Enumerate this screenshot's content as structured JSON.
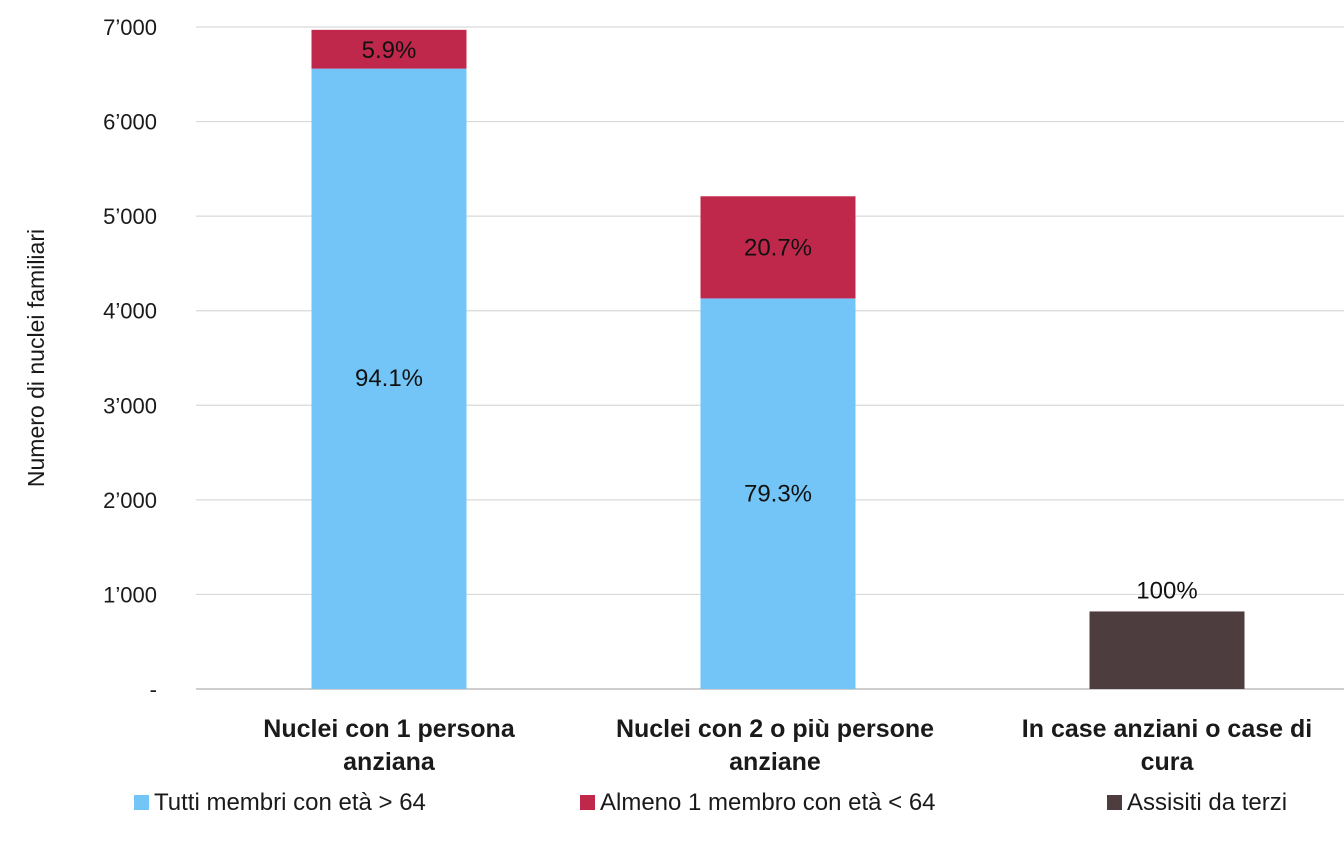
{
  "chart_data": {
    "type": "bar",
    "stacked": true,
    "title": "",
    "xlabel": "",
    "ylabel": "Numero di nuclei familiari",
    "ylim": [
      0,
      7000
    ],
    "yticks": [
      0,
      1000,
      2000,
      3000,
      4000,
      5000,
      6000,
      7000
    ],
    "ytick_labels": [
      "-",
      "1’000",
      "2’000",
      "3’000",
      "4’000",
      "5’000",
      "6’000",
      "7’000"
    ],
    "grid": true,
    "legend_position": "bottom",
    "categories": [
      [
        "Nuclei con 1 persona",
        "anziana"
      ],
      [
        "Nuclei con 2 o più persone",
        "anziane"
      ],
      [
        "In case anziani o case di",
        "cura"
      ]
    ],
    "series": [
      {
        "name": "Tutti membri con età > 64",
        "color": "#73C5F7",
        "values": [
          6560,
          4130,
          0
        ],
        "labels": [
          "94.1%",
          "79.3%",
          ""
        ]
      },
      {
        "name": "Almeno 1 membro con età < 64",
        "color": "#C0284B",
        "values": [
          410,
          1080,
          0
        ],
        "labels": [
          "5.9%",
          "20.7%",
          ""
        ]
      },
      {
        "name": "Assisiti da terzi",
        "color": "#4E3D3F",
        "values": [
          0,
          0,
          820
        ],
        "labels": [
          "",
          "",
          "100%"
        ]
      }
    ]
  }
}
